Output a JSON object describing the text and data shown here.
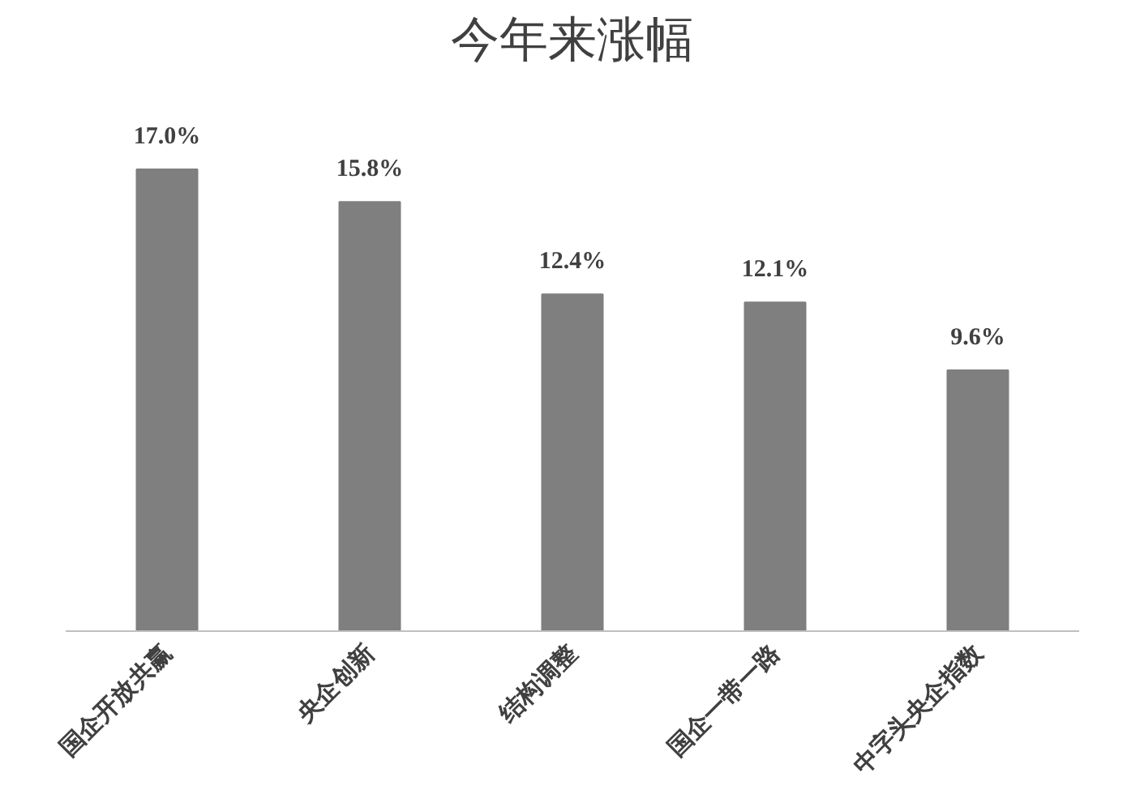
{
  "chart_data": {
    "type": "bar",
    "title": "今年来涨幅",
    "categories": [
      "国企开放共赢",
      "央企创新",
      "结构调整",
      "国企一带一路",
      "中字头央企指数"
    ],
    "values": [
      17.0,
      15.8,
      12.4,
      12.1,
      9.6
    ],
    "value_labels": [
      "17.0%",
      "15.8%",
      "12.4%",
      "12.1%",
      "9.6%"
    ],
    "color": "#7f7f7f",
    "grid": false
  }
}
